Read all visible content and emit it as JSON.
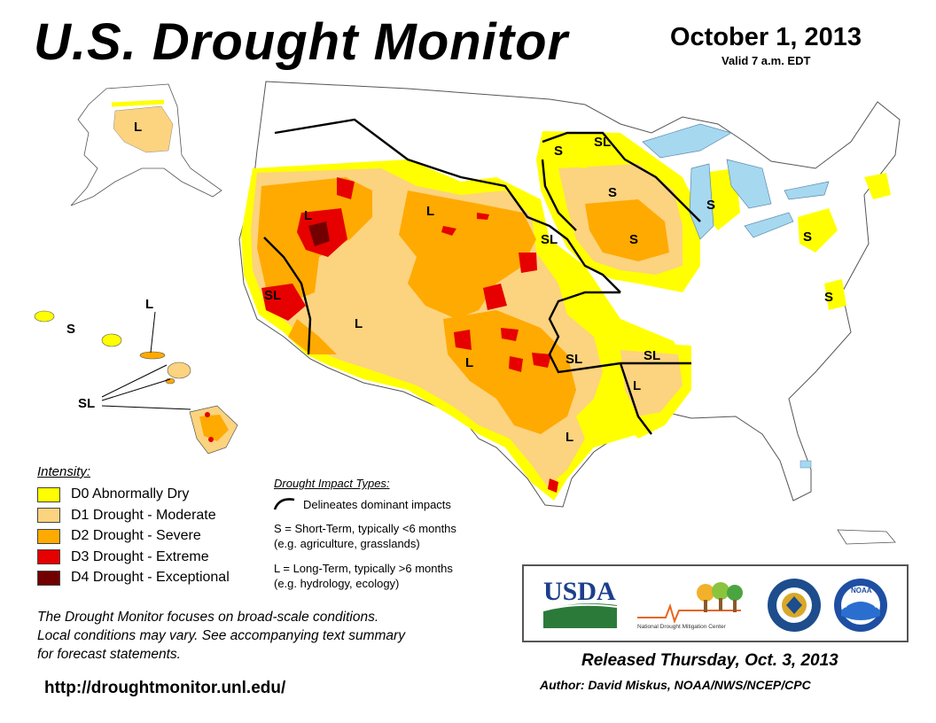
{
  "header": {
    "title": "U.S. Drought Monitor",
    "date": "October 1, 2013",
    "valid": "Valid 7 a.m. EDT"
  },
  "colors": {
    "d0": "#ffff00",
    "d1": "#fcd37f",
    "d2": "#ffaa00",
    "d3": "#e60000",
    "d4": "#730000",
    "water": "#a6d8f0"
  },
  "legend": {
    "title": "Intensity:",
    "items": [
      {
        "label": "D0 Abnormally Dry",
        "color": "#ffff00"
      },
      {
        "label": "D1 Drought - Moderate",
        "color": "#fcd37f"
      },
      {
        "label": "D2 Drought - Severe",
        "color": "#ffaa00"
      },
      {
        "label": "D3 Drought - Extreme",
        "color": "#e60000"
      },
      {
        "label": "D4 Drought - Exceptional",
        "color": "#730000"
      }
    ]
  },
  "impacts": {
    "title": "Drought Impact Types:",
    "delineates": "Delineates dominant impacts",
    "short_line1": "S = Short-Term, typically <6 months",
    "short_line2": "(e.g. agriculture, grasslands)",
    "long_line1": "L = Long-Term, typically >6 months",
    "long_line2": "(e.g. hydrology, ecology)"
  },
  "map_labels": {
    "alaska_L": "L",
    "hawaii_L": "L",
    "hawaii_S": "S",
    "hawaii_SL": "SL",
    "california_SL": "SL",
    "nevada_L": "L",
    "montana_L": "L",
    "arizona_L": "L",
    "newmexico_L": "L",
    "texas_L": "L",
    "plains_SL": "SL",
    "oklahoma_SL": "SL",
    "dakota_S": "S",
    "minnesota_SL": "SL",
    "minnesota_S": "S",
    "iowa_S": "S",
    "michigan_S": "S",
    "pennsylvania_S": "S",
    "virginia_S": "S",
    "arkansas_SL": "SL",
    "louisiana_L": "L"
  },
  "footer": {
    "note_line1": "The Drought Monitor focuses on broad-scale conditions.",
    "note_line2": "Local conditions may vary. See accompanying text summary",
    "note_line3": "for forecast statements.",
    "url": "http://droughtmonitor.unl.edu/",
    "released": "Released Thursday, Oct. 3, 2013",
    "author": "Author: David Miskus, NOAA/NWS/NCEP/CPC"
  },
  "logos": {
    "usda": "USDA",
    "ndmc": "National Drought Mitigation Center",
    "doc_icon": "department-of-commerce-seal",
    "noaa": "NOAA"
  }
}
